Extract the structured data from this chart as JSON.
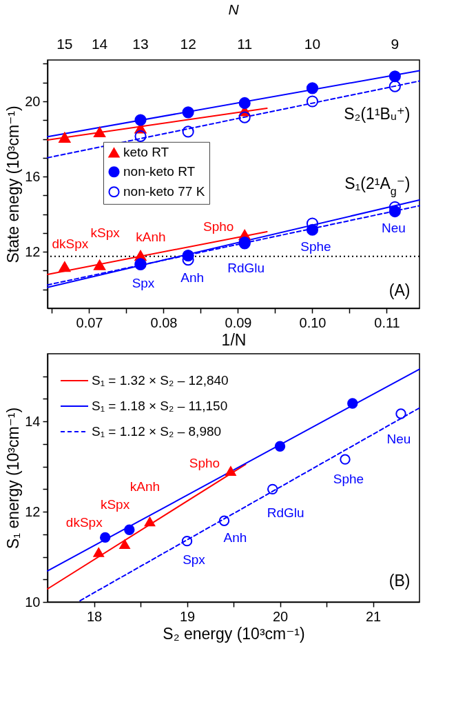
{
  "chart_data": [
    {
      "type": "scatter",
      "xlabel": "1/N",
      "ylabel": "State enegy (10³cm⁻¹)",
      "xlim": [
        0.0644,
        0.1144
      ],
      "ylim": [
        9,
        22.2
      ],
      "xticks": [
        {
          "value": 0.065,
          "label": null
        },
        0.07,
        {
          "value": 0.075,
          "label": null
        },
        0.08,
        {
          "value": 0.085,
          "label": null
        },
        0.09,
        {
          "value": 0.095,
          "label": null
        },
        {
          "value": 0.1,
          "label": "0.10"
        },
        {
          "value": 0.105,
          "label": null
        },
        0.11
      ],
      "yticks": [
        {
          "value": 10,
          "label": null
        },
        {
          "value": 11,
          "label": null
        },
        12,
        {
          "value": 13,
          "label": null
        },
        {
          "value": 14,
          "label": null
        },
        {
          "value": 15,
          "label": null
        },
        16,
        {
          "value": 17,
          "label": null
        },
        {
          "value": 18,
          "label": null
        },
        {
          "value": 19,
          "label": null
        },
        20,
        {
          "value": 21,
          "label": null
        },
        {
          "value": 22,
          "label": null
        }
      ],
      "legend": "center",
      "series": [
        {
          "name": "keto RT",
          "marker": "triangle",
          "color": "#ff0000",
          "x": [
            0.0667,
            0.0714,
            0.0769,
            0.0909,
            0.0667,
            0.0714,
            0.0769,
            0.0909
          ],
          "values": [
            18.08,
            18.37,
            18.57,
            19.49,
            11.21,
            11.3,
            11.8,
            12.9
          ]
        },
        {
          "name": "non-keto RT",
          "marker": "circle",
          "color": "#0000ff",
          "x": [
            0.0769,
            0.0833,
            0.0909,
            0.1,
            0.1111,
            0.0769,
            0.0833,
            0.0909,
            0.1,
            0.1111
          ],
          "values": [
            19.01,
            19.42,
            19.91,
            20.7,
            21.33,
            11.33,
            11.8,
            12.45,
            13.17,
            14.15
          ]
        },
        {
          "name": "non-keto 77 K",
          "marker": "circle",
          "line_style": "dashed",
          "color": "#0000ff",
          "x": [
            0.0769,
            0.0833,
            0.0909,
            0.1,
            0.1111,
            0.0769,
            0.0833,
            0.0909,
            0.1,
            0.1111
          ],
          "values": [
            18.15,
            18.39,
            19.15,
            20.0,
            20.8,
            11.35,
            11.58,
            12.5,
            13.51,
            14.38
          ]
        },
        {
          "type": "line",
          "color": "#ff0000",
          "line_style": "solid",
          "x": [
            0.0644,
            0.0939
          ],
          "values": [
            17.95,
            19.63
          ]
        },
        {
          "type": "line",
          "color": "#ff0000",
          "line_style": "solid",
          "x": [
            0.0644,
            0.0939
          ],
          "values": [
            10.8,
            13.07
          ]
        },
        {
          "type": "line",
          "color": "#0000ff",
          "line_style": "solid",
          "x": [
            0.0644,
            0.1144
          ],
          "values": [
            18.12,
            21.63
          ]
        },
        {
          "type": "line",
          "color": "#0000ff",
          "line_style": "solid",
          "x": [
            0.0644,
            0.1144
          ],
          "values": [
            10.11,
            14.76
          ]
        },
        {
          "type": "line",
          "color": "#0000ff",
          "line_style": "dashed",
          "x": [
            0.0644,
            0.1144
          ],
          "values": [
            17.0,
            21.08
          ]
        },
        {
          "type": "line",
          "color": "#0000ff",
          "line_style": "dashed",
          "x": [
            0.0644,
            0.1144
          ],
          "values": [
            10.24,
            14.45
          ]
        }
      ],
      "ref_lines": [
        {
          "axis": "y",
          "value": 11.76,
          "color": "#000000",
          "line_style": "dotted"
        }
      ],
      "annotations": [
        {
          "text": "dkSpx",
          "x": 0.0667,
          "y": 11.21
        },
        {
          "text": "kSpx",
          "x": 0.0714,
          "y": 11.3
        },
        {
          "text": "kAnh",
          "x": 0.0769,
          "y": 11.8
        },
        {
          "text": "Spho",
          "x": 0.0909,
          "y": 12.9
        },
        {
          "text": "Spx",
          "x": 0.0769,
          "y": 11.33
        },
        {
          "text": "Anh",
          "x": 0.0833,
          "y": 11.58
        },
        {
          "text": "RdGlu",
          "x": 0.0909,
          "y": 12.45
        },
        {
          "text": "Sphe",
          "x": 0.1,
          "y": 13.17
        },
        {
          "text": "Neu",
          "x": 0.1111,
          "y": 14.15
        },
        "15",
        "14",
        "13",
        "12",
        "11",
        "10",
        "9",
        "S₂(1¹Bᵤ⁺)",
        "S₁(2¹A$_{g}$⁻)",
        "(A)",
        "N"
      ]
    },
    {
      "type": "scatter",
      "xlabel": "S₂ energy (10³cm⁻¹)",
      "ylabel": "S₁ energy (10³cm⁻¹)",
      "xlim": [
        17.5,
        21.5
      ],
      "ylim": [
        10,
        15.5
      ],
      "xticks": [
        18,
        {
          "value": 18.5,
          "label": null
        },
        19,
        {
          "value": 19.5,
          "label": null
        },
        20,
        {
          "value": 20.5,
          "label": null
        },
        21
      ],
      "yticks": [
        10,
        {
          "value": 10.5,
          "label": null
        },
        {
          "value": 11,
          "label": null
        },
        {
          "value": 11.5,
          "label": null
        },
        12,
        {
          "value": 12.5,
          "label": null
        },
        {
          "value": 13,
          "label": null
        },
        {
          "value": 13.5,
          "label": null
        },
        14,
        {
          "value": 14.5,
          "label": null
        },
        {
          "value": 15,
          "label": null
        }
      ],
      "legend": "top left",
      "series": [
        {
          "marker": "triangle",
          "color": "#ff0000",
          "x": [
            18.05,
            18.33,
            18.6,
            19.47
          ],
          "values": [
            11.1,
            11.28,
            11.78,
            12.9
          ]
        },
        {
          "marker": "circle",
          "color": "#0000ff",
          "x": [
            18.12,
            18.38,
            20.0,
            20.78
          ],
          "values": [
            11.43,
            11.6,
            13.45,
            14.4
          ]
        },
        {
          "marker": "circle",
          "line_style": "dashed",
          "color": "#0000ff",
          "x": [
            19.0,
            19.4,
            19.92,
            20.7,
            21.3
          ],
          "values": [
            11.35,
            11.8,
            12.5,
            13.16,
            14.17
          ]
        },
        {
          "name": "S₁ = 1.32 × S₂  – 12,840",
          "type": "line",
          "color": "#ff0000",
          "line_style": "solid",
          "x": [
            17.5,
            19.63
          ],
          "values": [
            10.29,
            13.05
          ]
        },
        {
          "name": "S₁ = 1.18 × S₂ – 11,150",
          "type": "line",
          "color": "#0000ff",
          "line_style": "solid",
          "x": [
            17.5,
            21.5
          ],
          "values": [
            10.69,
            15.16
          ]
        },
        {
          "name": "S₁ = 1.12 × S₂  – 8,980",
          "type": "line",
          "color": "#0000ff",
          "line_style": "dashed",
          "x": [
            17.85,
            21.5
          ],
          "values": [
            10.03,
            14.3
          ]
        }
      ],
      "annotations": [
        {
          "text": "dkSpx",
          "x": 18.05,
          "y": 11.1
        },
        {
          "text": "kSpx",
          "x": 18.33,
          "y": 11.28
        },
        {
          "text": "kAnh",
          "x": 18.6,
          "y": 11.78
        },
        {
          "text": "Spho",
          "x": 19.47,
          "y": 12.9
        },
        {
          "text": "Spx",
          "x": 19.0,
          "y": 11.35
        },
        {
          "text": "Anh",
          "x": 19.4,
          "y": 11.8
        },
        {
          "text": "RdGlu",
          "x": 19.92,
          "y": 12.5
        },
        {
          "text": "Sphe",
          "x": 20.7,
          "y": 13.16
        },
        {
          "text": "Neu",
          "x": 21.3,
          "y": 14.17
        },
        "(B)"
      ]
    }
  ]
}
